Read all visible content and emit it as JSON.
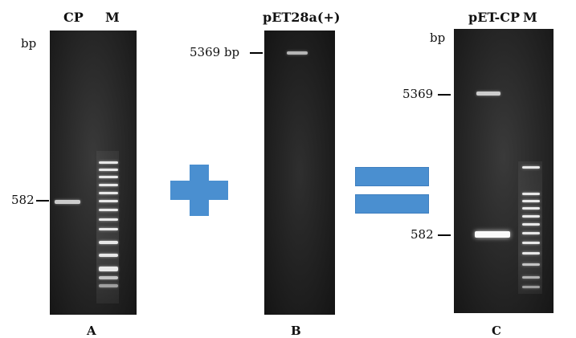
{
  "panel_a": {
    "lane_labels": [
      "CP",
      "M"
    ],
    "unit": "bp",
    "marker_582": "582",
    "panel_label": "A"
  },
  "panel_b": {
    "lane_label": "pET28a(+)",
    "marker_5369": "5369 bp",
    "panel_label": "B"
  },
  "panel_c": {
    "lane_labels": [
      "pET-CP",
      "M"
    ],
    "unit": "bp",
    "marker_5369": "5369",
    "marker_582": "582",
    "panel_label": "C"
  },
  "operators": {
    "plus": "plus-sign",
    "equals": "equals-sign",
    "color": "#4a8fd0"
  }
}
